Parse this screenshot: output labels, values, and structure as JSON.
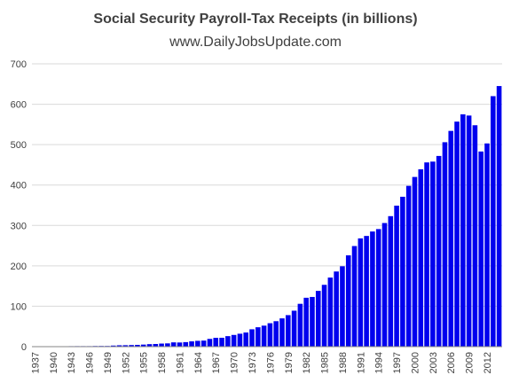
{
  "chart_data": {
    "type": "bar",
    "title": "Social Security Payroll-Tax Receipts (in billions)",
    "subtitle": "www.DailyJobsUpdate.com",
    "xlabel": "",
    "ylabel": "",
    "ylim": [
      0,
      700
    ],
    "yticks": [
      0,
      100,
      200,
      300,
      400,
      500,
      600,
      700
    ],
    "grid": true,
    "legend": "none",
    "bar_color": "#0000ee",
    "x_tick_labels": [
      "1937",
      "1940",
      "1943",
      "1946",
      "1949",
      "1952",
      "1955",
      "1958",
      "1961",
      "1964",
      "1967",
      "1970",
      "1973",
      "1976",
      "1979",
      "1982",
      "1985",
      "1988",
      "1991",
      "1994",
      "1997",
      "2000",
      "2003",
      "2006",
      "2009",
      "2012"
    ],
    "categories": [
      "1937",
      "1938",
      "1939",
      "1940",
      "1941",
      "1942",
      "1943",
      "1944",
      "1945",
      "1946",
      "1947",
      "1948",
      "1949",
      "1950",
      "1951",
      "1952",
      "1953",
      "1954",
      "1955",
      "1956",
      "1957",
      "1958",
      "1959",
      "1960",
      "1961",
      "1962",
      "1963",
      "1964",
      "1965",
      "1966",
      "1967",
      "1968",
      "1969",
      "1970",
      "1971",
      "1972",
      "1973",
      "1974",
      "1975",
      "1976",
      "1977",
      "1978",
      "1979",
      "1980",
      "1981",
      "1982",
      "1983",
      "1984",
      "1985",
      "1986",
      "1987",
      "1988",
      "1989",
      "1990",
      "1991",
      "1992",
      "1993",
      "1994",
      "1995",
      "1996",
      "1997",
      "1998",
      "1999",
      "2000",
      "2001",
      "2002",
      "2003",
      "2004",
      "2005",
      "2006",
      "2007",
      "2008",
      "2009",
      "2010",
      "2011",
      "2012",
      "2013",
      "2014"
    ],
    "values": [
      0.8,
      0.4,
      0.6,
      0.7,
      0.8,
      1.0,
      1.2,
      1.3,
      1.3,
      1.3,
      1.6,
      1.7,
      1.7,
      2.7,
      3.4,
      3.6,
      4.0,
      4.4,
      5.1,
      6.2,
      6.6,
      7.6,
      8.1,
      10.6,
      10.3,
      11.2,
      13.1,
      14.4,
      15.0,
      19.2,
      21.8,
      22.0,
      26.0,
      29.0,
      32.0,
      35.0,
      43.0,
      48.0,
      52.0,
      58.0,
      63.0,
      70.0,
      78.0,
      89.0,
      106.0,
      121.0,
      123.0,
      138.0,
      153.0,
      171.0,
      186.0,
      199.0,
      226.0,
      249.0,
      268.0,
      274.0,
      285.0,
      291.0,
      306.0,
      323.0,
      349.0,
      371.0,
      398.0,
      420.0,
      439.0,
      456.0,
      458.0,
      472.0,
      506.0,
      534.0,
      557.0,
      575.0,
      572.0,
      548.0,
      483.0,
      503.0,
      620.0,
      645.0
    ]
  }
}
